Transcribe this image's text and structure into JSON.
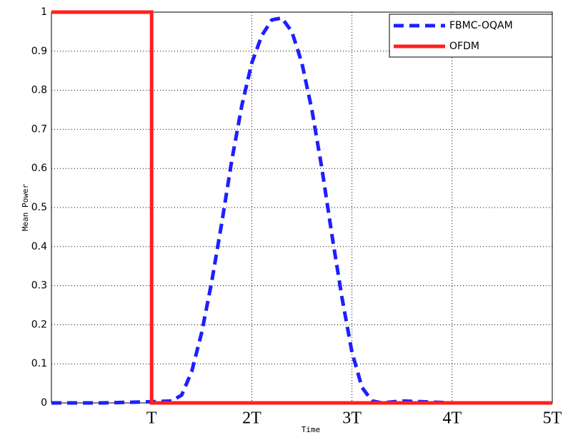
{
  "chart_data": {
    "type": "line",
    "xlabel": "Time",
    "ylabel": "Mean Power",
    "xlim": [
      0,
      5
    ],
    "ylim": [
      0,
      1
    ],
    "xticks": [
      {
        "value": 1,
        "label": "T"
      },
      {
        "value": 2,
        "label": "2T"
      },
      {
        "value": 3,
        "label": "3T"
      },
      {
        "value": 4,
        "label": "4T"
      },
      {
        "value": 5,
        "label": "5T"
      }
    ],
    "yticks": [
      0,
      0.1,
      0.2,
      0.3,
      0.4,
      0.5,
      0.6,
      0.7,
      0.8,
      0.9,
      1
    ],
    "grid": true,
    "legend": "upper right",
    "series": [
      {
        "name": "FBMC-OQAM",
        "color": "#1f1fff",
        "dashed": true,
        "x": [
          0,
          0.5,
          1,
          1.2,
          1.3,
          1.4,
          1.5,
          1.6,
          1.7,
          1.8,
          1.9,
          2.0,
          2.1,
          2.2,
          2.3,
          2.4,
          2.5,
          2.6,
          2.7,
          2.8,
          2.9,
          3.0,
          3.1,
          3.2,
          3.3,
          3.5,
          4,
          5
        ],
        "values": [
          0,
          0,
          0.003,
          0.005,
          0.02,
          0.08,
          0.18,
          0.31,
          0.46,
          0.62,
          0.76,
          0.87,
          0.94,
          0.98,
          0.985,
          0.95,
          0.87,
          0.75,
          0.6,
          0.43,
          0.27,
          0.13,
          0.04,
          0.005,
          0,
          0.005,
          0,
          0
        ]
      },
      {
        "name": "OFDM",
        "color": "#ff1f1f",
        "dashed": false,
        "x": [
          0,
          1,
          1,
          5
        ],
        "values": [
          1,
          1,
          0,
          0
        ]
      }
    ]
  }
}
